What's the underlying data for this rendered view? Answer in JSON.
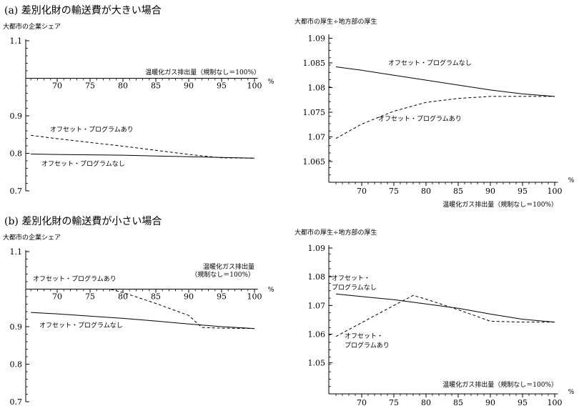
{
  "sections": [
    {
      "label": "(a)",
      "title": "差別化財の輸送費が大きい場合"
    },
    {
      "label": "(b)",
      "title": "差別化財の輸送費が小さい場合"
    }
  ],
  "chart_data": [
    {
      "type": "line",
      "ylabel": "大都市の企業シェア",
      "xlabel": "温暖化ガス排出量（規制なし＝100%）",
      "x_unit": "%",
      "x_ticks": [
        70,
        75,
        80,
        85,
        90,
        95,
        100
      ],
      "y_ticks": [
        0.7,
        0.8,
        0.9,
        1.1
      ],
      "xlim": [
        65.5,
        100.5
      ],
      "ylim": [
        0.7,
        1.1
      ],
      "x_axis_at": 1.0,
      "series": [
        {
          "name": "オフセット・プログラムあり",
          "style": "dashed",
          "x": [
            66,
            70,
            75,
            80,
            85,
            90,
            95,
            100
          ],
          "values": [
            0.848,
            0.839,
            0.829,
            0.819,
            0.808,
            0.797,
            0.788,
            0.787
          ]
        },
        {
          "name": "オフセット・プログラムなし",
          "style": "solid",
          "x": [
            66,
            70,
            75,
            80,
            85,
            90,
            95,
            100
          ],
          "values": [
            0.798,
            0.797,
            0.796,
            0.795,
            0.793,
            0.791,
            0.789,
            0.787
          ]
        }
      ]
    },
    {
      "type": "line",
      "ylabel": "大都市の厚生÷地方部の厚生",
      "xlabel": "温暖化ガス排出量（規制なし＝100%）",
      "x_unit": "%",
      "x_ticks": [
        70,
        75,
        80,
        85,
        90,
        95,
        100
      ],
      "y_ticks": [
        1.065,
        1.07,
        1.075,
        1.08,
        1.085,
        1.09
      ],
      "xlim": [
        65.5,
        100.5
      ],
      "ylim": [
        1.0608,
        1.0905
      ],
      "x_axis_at": 1.0608,
      "series": [
        {
          "name": "オフセット・プログラムなし",
          "style": "solid",
          "x": [
            66,
            70,
            75,
            80,
            85,
            90,
            95,
            100
          ],
          "values": [
            1.0842,
            1.0835,
            1.0825,
            1.0815,
            1.0805,
            1.0795,
            1.0787,
            1.0782
          ]
        },
        {
          "name": "オフセット・プログラムあり",
          "style": "dashed",
          "x": [
            66,
            70,
            75,
            80,
            85,
            90,
            95,
            100
          ],
          "values": [
            1.0697,
            1.0726,
            1.0752,
            1.077,
            1.0778,
            1.0782,
            1.0782,
            1.0782
          ]
        }
      ]
    },
    {
      "type": "line",
      "ylabel": "大都市の企業シェア",
      "xlabel": "温暖化ガス排出量\n（規制なし＝100%）",
      "x_unit": "%",
      "x_ticks": [
        70,
        75,
        80,
        85,
        90,
        95,
        100
      ],
      "y_ticks": [
        0.7,
        0.8,
        0.9,
        1.1
      ],
      "xlim": [
        65.5,
        100.5
      ],
      "ylim": [
        0.7,
        1.1
      ],
      "x_axis_at": 1.0,
      "series": [
        {
          "name": "オフセット・プログラムあり",
          "style": "dashed",
          "x": [
            66,
            70,
            75,
            78,
            80,
            85,
            90,
            92,
            95,
            100
          ],
          "values": [
            1.0,
            1.0,
            1.0,
            1.0,
            0.991,
            0.962,
            0.93,
            0.898,
            0.896,
            0.895
          ]
        },
        {
          "name": "オフセット・プログラムなし",
          "style": "solid",
          "x": [
            66,
            70,
            75,
            80,
            85,
            90,
            95,
            100
          ],
          "values": [
            0.938,
            0.934,
            0.928,
            0.922,
            0.915,
            0.907,
            0.9,
            0.895
          ]
        }
      ]
    },
    {
      "type": "line",
      "ylabel": "大都市の厚生÷地方部の厚生",
      "xlabel": "温暖化ガス排出量（規制なし＝100%）",
      "x_unit": "%",
      "x_ticks": [
        70,
        75,
        80,
        85,
        90,
        95,
        100
      ],
      "y_ticks": [
        1.05,
        1.06,
        1.07,
        1.08,
        1.09
      ],
      "xlim": [
        65.5,
        100.5
      ],
      "ylim": [
        1.0392,
        1.0905
      ],
      "x_axis_at": 1.0392,
      "series": [
        {
          "name": "オフセット・プログラムなし",
          "style": "solid",
          "x": [
            66,
            70,
            75,
            80,
            85,
            90,
            95,
            100
          ],
          "values": [
            1.074,
            1.0731,
            1.072,
            1.0705,
            1.069,
            1.067,
            1.0652,
            1.0642
          ]
        },
        {
          "name": "オフセット・プログラムあり",
          "style": "dashed",
          "x": [
            66,
            70,
            75,
            78,
            80,
            85,
            90,
            95,
            100
          ],
          "values": [
            1.0592,
            1.064,
            1.07,
            1.0735,
            1.0722,
            1.0685,
            1.0645,
            1.0642,
            1.0642
          ]
        }
      ]
    }
  ]
}
